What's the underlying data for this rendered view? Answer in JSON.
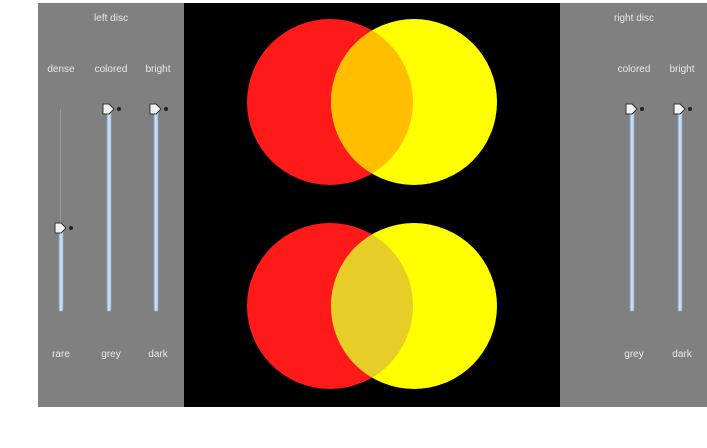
{
  "left_panel": {
    "title": "left disc",
    "sliders": [
      {
        "id": "dense",
        "top_label": "dense",
        "bottom_label": "rare",
        "level": 0.41
      },
      {
        "id": "colored",
        "top_label": "colored",
        "bottom_label": "grey",
        "level": 1.0
      },
      {
        "id": "bright",
        "top_label": "bright",
        "bottom_label": "dark",
        "level": 1.0
      }
    ]
  },
  "right_panel": {
    "title": "right disc",
    "sliders": [
      {
        "id": "colored",
        "top_label": "colored",
        "bottom_label": "grey",
        "level": 1.0
      },
      {
        "id": "bright",
        "top_label": "bright",
        "bottom_label": "dark",
        "level": 1.0
      }
    ]
  },
  "colors": {
    "panel_bg": "#808080",
    "canvas_bg": "#000000",
    "left_disc": "#ff1a1a",
    "right_disc": "#ffff00",
    "overlap_top": "#ffbf00",
    "overlap_bottom": "#e6cd28"
  }
}
